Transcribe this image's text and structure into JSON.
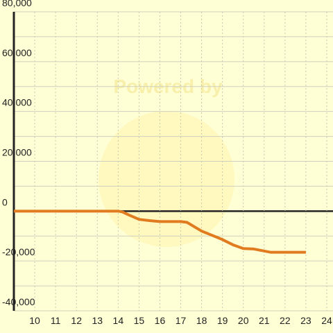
{
  "chart_data": {
    "type": "line",
    "watermark": "Powered by",
    "x": [
      9,
      14,
      14.2,
      14.5,
      15,
      15.5,
      16,
      17,
      17.3,
      18,
      19,
      19.5,
      20,
      20.5,
      21,
      21.3,
      22,
      23
    ],
    "series": [
      {
        "color": "#e07b20",
        "values": [
          0,
          0,
          -300,
          -1500,
          -3300,
          -3800,
          -4200,
          -4200,
          -4500,
          -8000,
          -11400,
          -13500,
          -15000,
          -15200,
          -16000,
          -16500,
          -16500,
          -16500
        ]
      }
    ],
    "xlim": [
      9,
      24.3
    ],
    "xticks": [
      10,
      11,
      12,
      13,
      14,
      15,
      16,
      17,
      18,
      19,
      20,
      21,
      22,
      23,
      24
    ],
    "ylim": [
      -40000,
      80000
    ],
    "yticks": [
      {
        "value": -40000,
        "label": "-40,000"
      },
      {
        "value": -20000,
        "label": "-20,000"
      },
      0,
      {
        "value": 20000,
        "label": "20,000"
      },
      {
        "value": 40000,
        "label": "40,000"
      },
      {
        "value": 60000,
        "label": "60,000"
      },
      {
        "value": 80000,
        "label": "80,000"
      }
    ],
    "grid": true
  }
}
